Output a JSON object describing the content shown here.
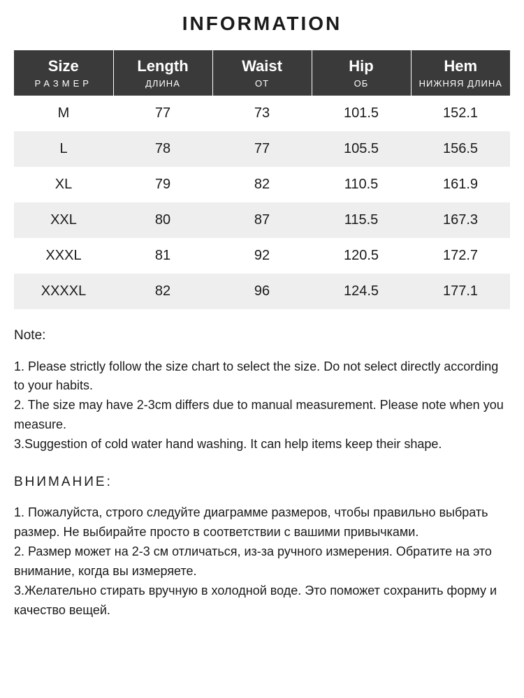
{
  "title": "INFORMATION",
  "table": {
    "header_bg": "#3a3a3a",
    "header_fg": "#ffffff",
    "row_bg": "#ffffff",
    "row_alt_bg": "#eeeeee",
    "columns": [
      {
        "main": "Size",
        "sub": "РАЗМЕР",
        "sub_spaced": true
      },
      {
        "main": "Length",
        "sub": "ДЛИНА",
        "sub_spaced": false
      },
      {
        "main": "Waist",
        "sub": "ОТ",
        "sub_spaced": false
      },
      {
        "main": "Hip",
        "sub": "ОБ",
        "sub_spaced": false
      },
      {
        "main": "Hem",
        "sub": "НИЖНЯЯ ДЛИНА",
        "sub_spaced": false
      }
    ],
    "rows": [
      [
        "M",
        "77",
        "73",
        "101.5",
        "152.1"
      ],
      [
        "L",
        "78",
        "77",
        "105.5",
        "156.5"
      ],
      [
        "XL",
        "79",
        "82",
        "110.5",
        "161.9"
      ],
      [
        "XXL",
        "80",
        "87",
        "115.5",
        "167.3"
      ],
      [
        "XXXL",
        "81",
        "92",
        "120.5",
        "172.7"
      ],
      [
        "XXXXL",
        "82",
        "96",
        "124.5",
        "177.1"
      ]
    ]
  },
  "notes": {
    "en": {
      "heading": "Note:",
      "lines": [
        "1. Please strictly follow the size chart  to select the size. Do not select directly according to your habits.",
        "2. The size may have 2-3cm differs due to manual measurement. Please note when you measure.",
        "3.Suggestion of cold water hand washing. It can help items keep their shape."
      ]
    },
    "ru": {
      "heading": "ВНИМАНИЕ:",
      "lines": [
        "1. Пожалуйста, строго следуйте диаграмме размеров, чтобы правильно выбрать размер. Не выбирайте просто в соответствии с вашими привычками.",
        "2. Размер может на 2-3 см отличаться, из-за ручного измерения. Обратите на это внимание, когда вы измеряете.",
        "3.Желательно стирать вручную в холодной воде. Это поможет сохранить форму и качество вещей."
      ]
    }
  }
}
